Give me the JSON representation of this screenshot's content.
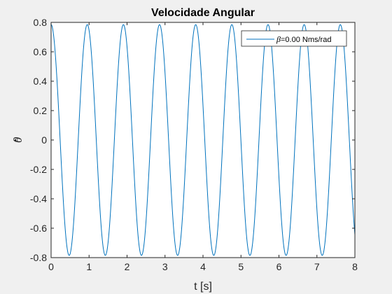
{
  "chart_data": {
    "type": "line",
    "title": "Velocidade Angular",
    "xlabel": "t [s]",
    "ylabel": "θ",
    "xlim": [
      0,
      8
    ],
    "ylim": [
      -0.8,
      0.8
    ],
    "xticks": [
      "0",
      "1",
      "2",
      "3",
      "4",
      "5",
      "6",
      "7",
      "8"
    ],
    "yticks": [
      "-0.8",
      "-0.6",
      "-0.4",
      "-0.2",
      "0",
      "0.2",
      "0.4",
      "0.6",
      "0.8"
    ],
    "grid": false,
    "legend_position": "top-right",
    "series": [
      {
        "name_symbol": "β",
        "name_text": "=0.00 Nms/rad",
        "color": "#0072bd",
        "function": "0.785*cos(6.6*t)",
        "amplitude": 0.785,
        "angular_frequency_rad_s": 6.6,
        "damping": 0.0
      }
    ]
  }
}
